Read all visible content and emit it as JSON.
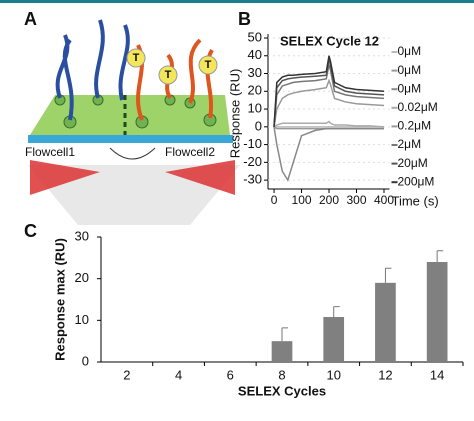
{
  "diagram": {
    "label": "A",
    "flowcells": [
      "Flowcell1",
      "Flowcell2"
    ],
    "markers": [
      "T",
      "T",
      "T"
    ]
  },
  "chart_data": [
    {
      "type": "line",
      "label": "B",
      "title": "SELEX Cycle 12",
      "ylabel": "Response (RU)",
      "xlabel": "Time (s)",
      "x": [
        0,
        10,
        30,
        50,
        70,
        100,
        150,
        190,
        200,
        205,
        220,
        260,
        300,
        350,
        400
      ],
      "xlim": [
        -22,
        420
      ],
      "xticks": [
        0,
        100,
        200,
        300,
        400
      ],
      "ylim": [
        -35,
        50
      ],
      "yticks": [
        -30,
        -20,
        -10,
        0,
        10,
        20,
        30,
        40,
        50
      ],
      "legend": "right",
      "series": [
        {
          "name": "0μM",
          "color": "#bbbbbb",
          "values": [
            0,
            0,
            0,
            0,
            0,
            0,
            0,
            0,
            0,
            0,
            0,
            0,
            0,
            0,
            0
          ]
        },
        {
          "name": "0μM",
          "color": "#999999",
          "values": [
            0,
            -1,
            -1,
            -1,
            -1,
            -1,
            -1,
            -1,
            -1,
            -1,
            -1,
            -1,
            -1,
            -1,
            -1
          ]
        },
        {
          "name": "0μM",
          "color": "#888888",
          "values": [
            0,
            -10,
            -25,
            -30,
            -20,
            -5,
            -2,
            -1,
            -1,
            -1,
            -1,
            -1,
            -1,
            -1,
            -1
          ]
        },
        {
          "name": "0.02μM",
          "color": "#aaaaaa",
          "values": [
            0,
            1,
            2,
            2,
            2,
            2,
            2,
            2,
            3,
            2,
            1,
            1,
            0.5,
            0.5,
            0
          ]
        },
        {
          "name": "0.2μM",
          "color": "#999999",
          "values": [
            0,
            10,
            16,
            18,
            19,
            20,
            21,
            22,
            26,
            24,
            16,
            14,
            13,
            12.5,
            12
          ]
        },
        {
          "name": "2μM",
          "color": "#777777",
          "values": [
            0,
            18,
            23,
            24,
            25,
            25.5,
            26,
            27,
            35,
            32,
            20,
            18,
            17,
            16.5,
            16
          ]
        },
        {
          "name": "20μM",
          "color": "#555555",
          "values": [
            0,
            22,
            26,
            27,
            27.5,
            28,
            28.5,
            29,
            38,
            35,
            23,
            20,
            19,
            18.5,
            18
          ]
        },
        {
          "name": "200μM",
          "color": "#333333",
          "values": [
            0,
            25,
            28,
            29,
            29,
            29.5,
            30,
            31,
            40,
            37,
            25,
            22,
            21,
            20.5,
            20
          ]
        }
      ]
    },
    {
      "type": "bar",
      "label": "C",
      "ylabel": "Response max (RU)",
      "xlabel": "SELEX Cycles",
      "categories": [
        "2",
        "4",
        "6",
        "8",
        "10",
        "12",
        "14"
      ],
      "values": [
        0,
        0,
        0,
        5,
        10.8,
        19,
        24
      ],
      "errors": [
        0,
        0,
        0,
        3.2,
        2.5,
        3.5,
        2.7
      ],
      "color": "#808080",
      "ylim": [
        0,
        30
      ],
      "yticks": [
        0,
        10,
        20,
        30
      ]
    }
  ]
}
